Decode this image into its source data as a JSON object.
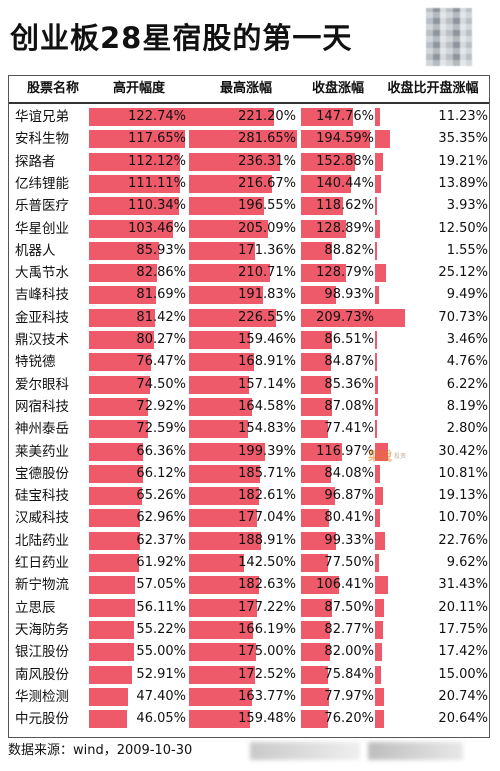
{
  "title": "创业板28星宿股的第一天",
  "headers": [
    "股票名称",
    "高开幅度",
    "最高涨幅",
    "收盘涨幅",
    "收盘比开盘涨幅"
  ],
  "columns_percent": {
    "open_max": 122.74,
    "high_max": 281.65,
    "close_max": 209.73,
    "ratio_max": 70.73
  },
  "rows": [
    {
      "name": "华谊兄弟",
      "open": "122.74%",
      "high": "221.20%",
      "close": "147.76%",
      "ratio": "11.23%",
      "open_v": 122.74,
      "high_v": 221.2,
      "close_v": 147.76,
      "ratio_v": 11.23
    },
    {
      "name": "安科生物",
      "open": "117.65%",
      "high": "281.65%",
      "close": "194.59%",
      "ratio": "35.35%",
      "open_v": 117.65,
      "high_v": 281.65,
      "close_v": 194.59,
      "ratio_v": 35.35
    },
    {
      "name": "探路者",
      "open": "112.12%",
      "high": "236.31%",
      "close": "152.88%",
      "ratio": "19.21%",
      "open_v": 112.12,
      "high_v": 236.31,
      "close_v": 152.88,
      "ratio_v": 19.21
    },
    {
      "name": "亿纬锂能",
      "open": "111.11%",
      "high": "216.67%",
      "close": "140.44%",
      "ratio": "13.89%",
      "open_v": 111.11,
      "high_v": 216.67,
      "close_v": 140.44,
      "ratio_v": 13.89
    },
    {
      "name": "乐普医疗",
      "open": "110.34%",
      "high": "196.55%",
      "close": "118.62%",
      "ratio": "3.93%",
      "open_v": 110.34,
      "high_v": 196.55,
      "close_v": 118.62,
      "ratio_v": 3.93
    },
    {
      "name": "华星创业",
      "open": "103.46%",
      "high": "205.09%",
      "close": "128.89%",
      "ratio": "12.50%",
      "open_v": 103.46,
      "high_v": 205.09,
      "close_v": 128.89,
      "ratio_v": 12.5
    },
    {
      "name": "机器人",
      "open": "85.93%",
      "high": "171.36%",
      "close": "88.82%",
      "ratio": "1.55%",
      "open_v": 85.93,
      "high_v": 171.36,
      "close_v": 88.82,
      "ratio_v": 1.55
    },
    {
      "name": "大禹节水",
      "open": "82.86%",
      "high": "210.71%",
      "close": "128.79%",
      "ratio": "25.12%",
      "open_v": 82.86,
      "high_v": 210.71,
      "close_v": 128.79,
      "ratio_v": 25.12
    },
    {
      "name": "吉峰科技",
      "open": "81.69%",
      "high": "191.83%",
      "close": "98.93%",
      "ratio": "9.49%",
      "open_v": 81.69,
      "high_v": 191.83,
      "close_v": 98.93,
      "ratio_v": 9.49
    },
    {
      "name": "金亚科技",
      "open": "81.42%",
      "high": "226.55%",
      "close": "209.73%",
      "ratio": "70.73%",
      "open_v": 81.42,
      "high_v": 226.55,
      "close_v": 209.73,
      "ratio_v": 70.73
    },
    {
      "name": "鼎汉技术",
      "open": "80.27%",
      "high": "159.46%",
      "close": "86.51%",
      "ratio": "3.46%",
      "open_v": 80.27,
      "high_v": 159.46,
      "close_v": 86.51,
      "ratio_v": 3.46
    },
    {
      "name": "特锐德",
      "open": "76.47%",
      "high": "168.91%",
      "close": "84.87%",
      "ratio": "4.76%",
      "open_v": 76.47,
      "high_v": 168.91,
      "close_v": 84.87,
      "ratio_v": 4.76
    },
    {
      "name": "爱尔眼科",
      "open": "74.50%",
      "high": "157.14%",
      "close": "85.36%",
      "ratio": "6.22%",
      "open_v": 74.5,
      "high_v": 157.14,
      "close_v": 85.36,
      "ratio_v": 6.22
    },
    {
      "name": "网宿科技",
      "open": "72.92%",
      "high": "164.58%",
      "close": "87.08%",
      "ratio": "8.19%",
      "open_v": 72.92,
      "high_v": 164.58,
      "close_v": 87.08,
      "ratio_v": 8.19
    },
    {
      "name": "神州泰岳",
      "open": "72.59%",
      "high": "154.83%",
      "close": "77.41%",
      "ratio": "2.80%",
      "open_v": 72.59,
      "high_v": 154.83,
      "close_v": 77.41,
      "ratio_v": 2.8
    },
    {
      "name": "莱美药业",
      "open": "66.36%",
      "high": "199.39%",
      "close": "116.97%",
      "ratio": "30.42%",
      "open_v": 66.36,
      "high_v": 199.39,
      "close_v": 116.97,
      "ratio_v": 30.42
    },
    {
      "name": "宝德股份",
      "open": "66.12%",
      "high": "185.71%",
      "close": "84.08%",
      "ratio": "10.81%",
      "open_v": 66.12,
      "high_v": 185.71,
      "close_v": 84.08,
      "ratio_v": 10.81
    },
    {
      "name": "硅宝科技",
      "open": "65.26%",
      "high": "182.61%",
      "close": "96.87%",
      "ratio": "19.13%",
      "open_v": 65.26,
      "high_v": 182.61,
      "close_v": 96.87,
      "ratio_v": 19.13
    },
    {
      "name": "汉威科技",
      "open": "62.96%",
      "high": "177.04%",
      "close": "80.41%",
      "ratio": "10.70%",
      "open_v": 62.96,
      "high_v": 177.04,
      "close_v": 80.41,
      "ratio_v": 10.7
    },
    {
      "name": "北陆药业",
      "open": "62.37%",
      "high": "188.91%",
      "close": "99.33%",
      "ratio": "22.76%",
      "open_v": 62.37,
      "high_v": 188.91,
      "close_v": 99.33,
      "ratio_v": 22.76
    },
    {
      "name": "红日药业",
      "open": "61.92%",
      "high": "142.50%",
      "close": "77.50%",
      "ratio": "9.62%",
      "open_v": 61.92,
      "high_v": 142.5,
      "close_v": 77.5,
      "ratio_v": 9.62
    },
    {
      "name": "新宁物流",
      "open": "57.05%",
      "high": "182.63%",
      "close": "106.41%",
      "ratio": "31.43%",
      "open_v": 57.05,
      "high_v": 182.63,
      "close_v": 106.41,
      "ratio_v": 31.43
    },
    {
      "name": "立思辰",
      "open": "56.11%",
      "high": "177.22%",
      "close": "87.50%",
      "ratio": "20.11%",
      "open_v": 56.11,
      "high_v": 177.22,
      "close_v": 87.5,
      "ratio_v": 20.11
    },
    {
      "name": "天海防务",
      "open": "55.22%",
      "high": "166.19%",
      "close": "82.77%",
      "ratio": "17.75%",
      "open_v": 55.22,
      "high_v": 166.19,
      "close_v": 82.77,
      "ratio_v": 17.75
    },
    {
      "name": "银江股份",
      "open": "55.00%",
      "high": "175.00%",
      "close": "82.00%",
      "ratio": "17.42%",
      "open_v": 55.0,
      "high_v": 175.0,
      "close_v": 82.0,
      "ratio_v": 17.42
    },
    {
      "name": "南风股份",
      "open": "52.91%",
      "high": "172.52%",
      "close": "75.84%",
      "ratio": "15.00%",
      "open_v": 52.91,
      "high_v": 172.52,
      "close_v": 75.84,
      "ratio_v": 15.0
    },
    {
      "name": "华测检测",
      "open": "47.40%",
      "high": "163.77%",
      "close": "77.97%",
      "ratio": "20.74%",
      "open_v": 47.4,
      "high_v": 163.77,
      "close_v": 77.97,
      "ratio_v": 20.74
    },
    {
      "name": "中元股份",
      "open": "46.05%",
      "high": "159.48%",
      "close": "76.20%",
      "ratio": "20.64%",
      "open_v": 46.05,
      "high_v": 159.48,
      "close_v": 76.2,
      "ratio_v": 20.64
    }
  ],
  "footer": "数据来源：wind，2009-10-30",
  "watermark": {
    "main": "菜說",
    "sub": "投资"
  },
  "colors": {
    "bar": "#ee5a6a",
    "text": "#111111",
    "background": "#ffffff"
  },
  "icons": {
    "qr": "qr-code-icon"
  }
}
